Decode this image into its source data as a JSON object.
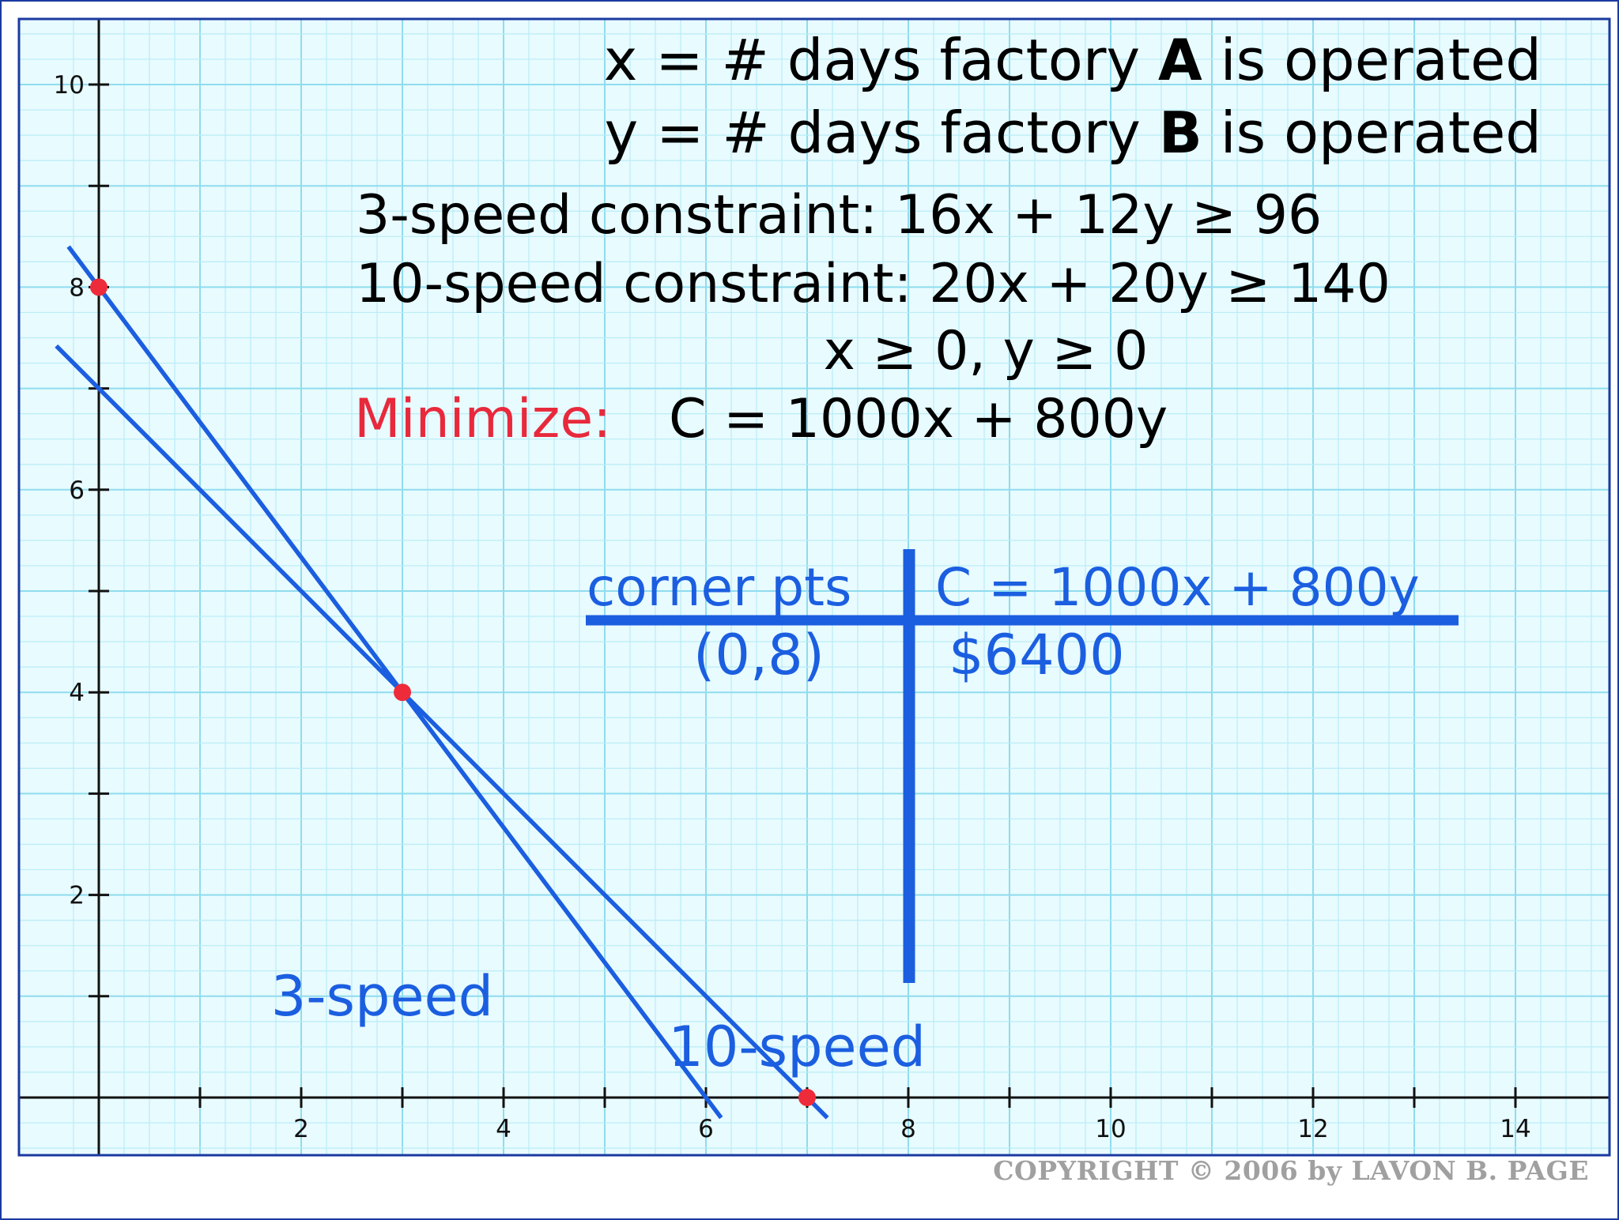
{
  "copyright": "COPYRIGHT © 2006 by LAVON B. PAGE",
  "colors": {
    "background": "#e8fbff",
    "grid_minor": "#b9ecf6",
    "grid_major": "#8fdcee",
    "frame": "#1a3aa0",
    "axis": "#111111",
    "line": "#1b5ee0",
    "point": "#ee2b3a",
    "text": "#000000",
    "highlight": "#e8293c",
    "table": "#1b5ee0"
  },
  "definitions": {
    "x_prefix": "x = # days factory ",
    "x_bold": "A",
    "x_suffix": " is operated",
    "y_prefix": "y = # days factory ",
    "y_bold": "B",
    "y_suffix": " is operated"
  },
  "constraints": {
    "three_speed": "3-speed constraint: 16x + 12y ≥ 96",
    "ten_speed": "10-speed constraint: 20x + 20y ≥ 140",
    "nonneg": "x ≥ 0, y ≥ 0"
  },
  "objective": {
    "label": "Minimize:",
    "expression": "C = 1000x + 800y"
  },
  "table": {
    "header_left": "corner pts",
    "header_right": "C = 1000x + 800y",
    "rows": [
      {
        "point": "(0,8)",
        "cost": "$6400"
      }
    ]
  },
  "chart_data": {
    "type": "line",
    "xlim": [
      -0.4,
      14.9
    ],
    "ylim": [
      -0.5,
      10.6
    ],
    "x_ticks": [
      1,
      2,
      3,
      4,
      5,
      6,
      7,
      8,
      9,
      10,
      11,
      12,
      13,
      14
    ],
    "x_tick_labels": [
      2,
      4,
      6,
      8,
      10,
      12,
      14
    ],
    "y_ticks": [
      1,
      2,
      3,
      4,
      5,
      6,
      7,
      8,
      9,
      10
    ],
    "y_tick_labels": [
      2,
      4,
      6,
      8,
      10
    ],
    "grid": true,
    "series": [
      {
        "name": "3-speed",
        "label_x": 2.8,
        "label_y": 1.0,
        "x": [
          -0.3,
          6.15
        ],
        "y": [
          8.4,
          -0.2
        ]
      },
      {
        "name": "10-speed",
        "label_x": 6.9,
        "label_y": 0.5,
        "x": [
          -0.42,
          7.2
        ],
        "y": [
          7.42,
          -0.2
        ]
      }
    ],
    "points": [
      {
        "x": 0,
        "y": 8
      },
      {
        "x": 3,
        "y": 4
      },
      {
        "x": 7,
        "y": 0
      }
    ]
  }
}
